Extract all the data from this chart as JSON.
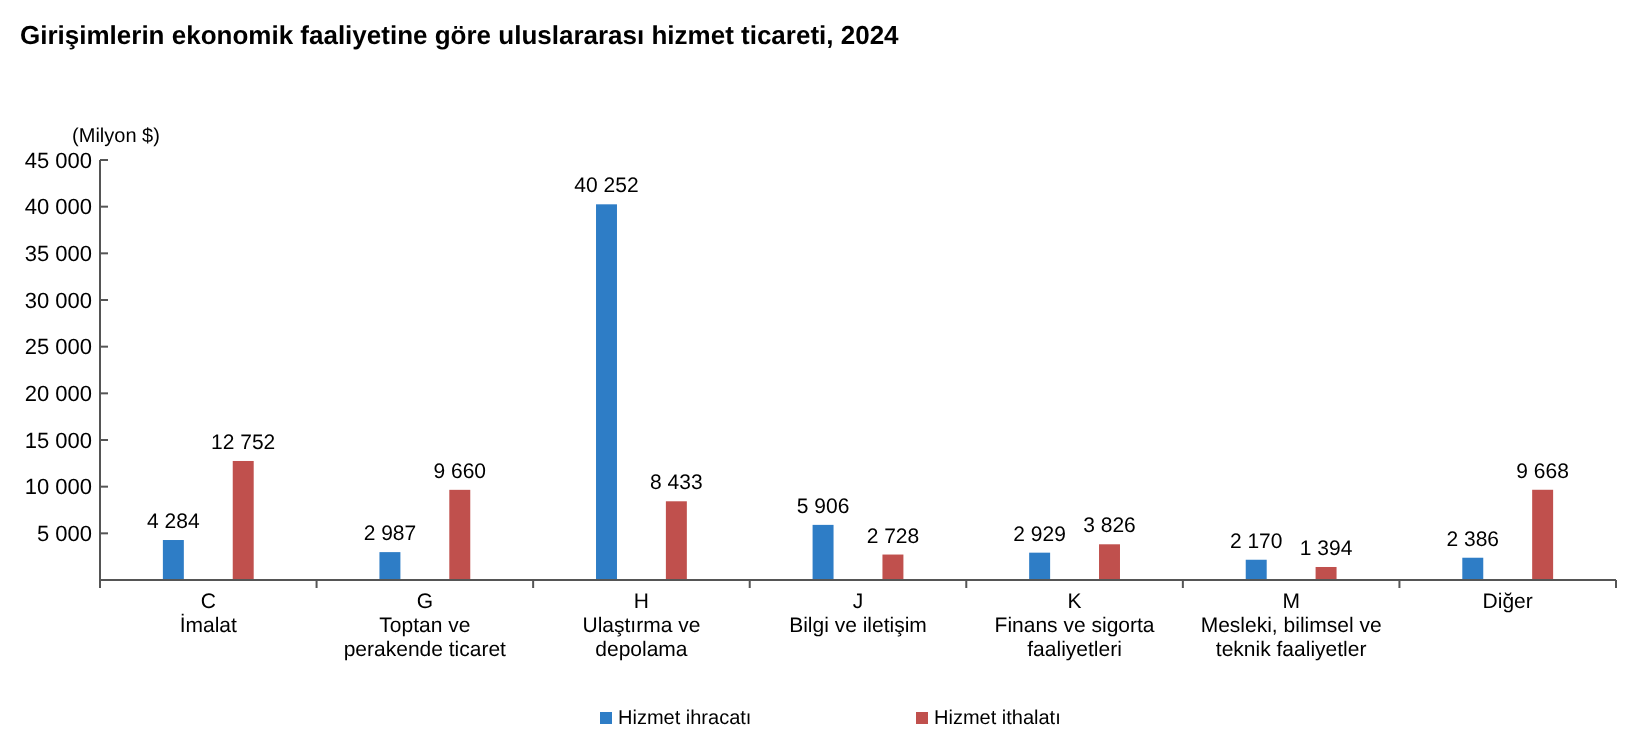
{
  "chart_data": {
    "type": "bar",
    "title": "Girişimlerin ekonomik faaliyetine göre uluslararası hizmet ticareti, 2024",
    "ylabel": "(Milyon $)",
    "categories": [
      "C\nİmalat",
      "G\nToptan ve\nperakende ticaret",
      "H\nUlaştırma ve\ndepolama",
      "J\nBilgi ve iletişim",
      "K\nFinans ve sigorta\nfaaliyetleri",
      "M\nMesleki, bilimsel ve\nteknik faaliyetler",
      "Diğer"
    ],
    "series": [
      {
        "name": "Hizmet ihracatı",
        "color": "#2e7dc6",
        "values": [
          4284,
          2987,
          40252,
          5906,
          2929,
          2170,
          2386
        ],
        "value_labels": [
          "4 284",
          "2 987",
          "40 252",
          "5 906",
          "2 929",
          "2 170",
          "2 386"
        ]
      },
      {
        "name": "Hizmet ithalatı",
        "color": "#c0504d",
        "values": [
          12752,
          9660,
          8433,
          2728,
          3826,
          1394,
          9668
        ],
        "value_labels": [
          "12 752",
          "9 660",
          "8 433",
          "2 728",
          "3 826",
          "1 394",
          "9 668"
        ]
      }
    ],
    "ylim": [
      0,
      45000
    ],
    "yticks": [
      {
        "value": 0,
        "label": null
      },
      {
        "value": 5000,
        "label": "5 000"
      },
      {
        "value": 10000,
        "label": "10 000"
      },
      {
        "value": 15000,
        "label": "15 000"
      },
      {
        "value": 20000,
        "label": "20 000"
      },
      {
        "value": 25000,
        "label": "25 000"
      },
      {
        "value": 30000,
        "label": "30 000"
      },
      {
        "value": 35000,
        "label": "35 000"
      },
      {
        "value": 40000,
        "label": "40 000"
      },
      {
        "value": 45000,
        "label": "45 000"
      }
    ],
    "grid": false,
    "legend": "bottom"
  }
}
